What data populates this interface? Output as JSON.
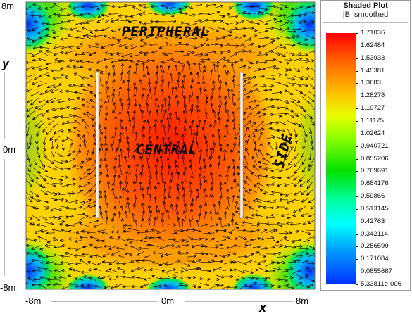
{
  "plot": {
    "x_tick_labels": [
      "-8m",
      "0m",
      "8m"
    ],
    "y_tick_labels": [
      "8m",
      "0m",
      "-8m"
    ],
    "x_axis_var": "x",
    "y_axis_var": "y",
    "region_labels": {
      "peripheral": "PERIPHERAL",
      "central": "CENTRAL",
      "side": "SIDE"
    },
    "colors": {
      "max": "#ff0000",
      "high": "#ff8a00",
      "mid": "#ffdc00",
      "low_mid": "#a0ff00",
      "low": "#00d040",
      "very_low": "#00c8ff",
      "min": "#0028ff",
      "arrow": "#000000",
      "conductor": "#f2f2f2"
    }
  },
  "legend": {
    "title": "Shaded Plot",
    "subtitle": "|B| smoothed",
    "ticks": [
      "1.71036",
      "1.62484",
      "1.53933",
      "1.45381",
      "1.3683",
      "1.28278",
      "1.19727",
      "1.11175",
      "1.02624",
      "0.940721",
      "0.855206",
      "0.769691",
      "0.684176",
      "0.59866",
      "0.513145",
      "0.42763",
      "0.342114",
      "0.256599",
      "0.171084",
      "0.0855687",
      "5.33811e-006"
    ]
  }
}
